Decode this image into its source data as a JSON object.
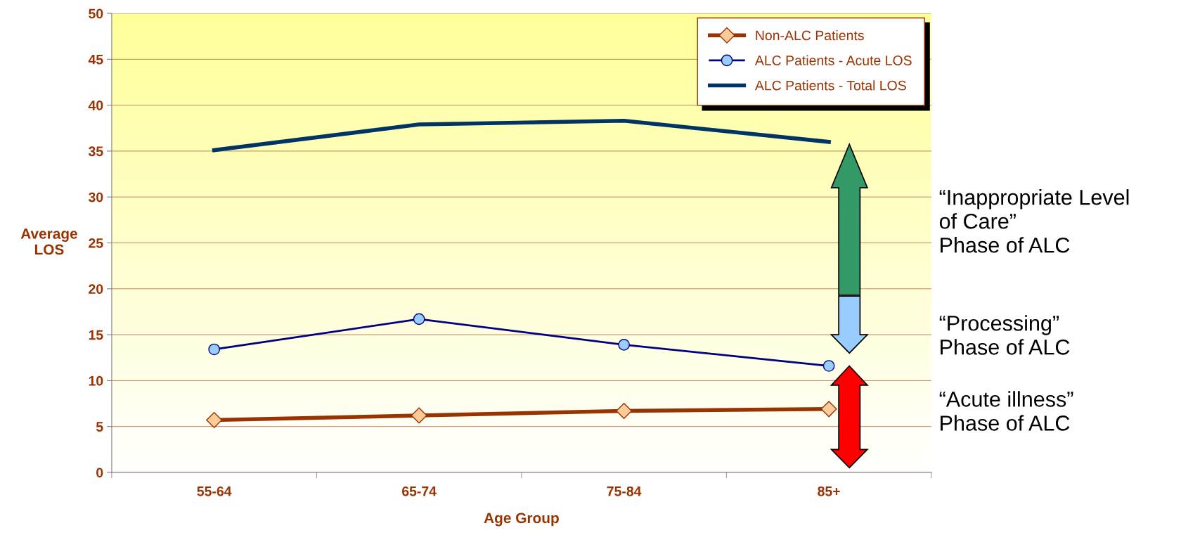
{
  "chart_data": {
    "type": "line",
    "xlabel": "Age Group",
    "ylabel": "Average\nLOS",
    "categories": [
      "55-64",
      "65-74",
      "75-84",
      "85+"
    ],
    "series": [
      {
        "name": "Non-ALC Patients",
        "color": "#993300",
        "marker": "diamond",
        "values": [
          5.7,
          6.2,
          6.7,
          6.9
        ]
      },
      {
        "name": "ALC Patients - Acute LOS",
        "color": "#000080",
        "marker": "circle",
        "values": [
          13.4,
          16.7,
          13.9,
          11.6
        ]
      },
      {
        "name": "ALC Patients - Total LOS",
        "color": "#003366",
        "marker": "none",
        "values": [
          35.1,
          37.9,
          38.3,
          36.0
        ]
      }
    ],
    "ylim": [
      0,
      50
    ],
    "yticks": [
      0,
      5,
      10,
      15,
      20,
      25,
      30,
      35,
      40,
      45,
      50
    ],
    "grid": "y",
    "legend": "top right",
    "line_style": "solid",
    "annotations": [
      "“Inappropriate Level\nof Care”\nPhase of ALC",
      "“Processing”\nPhase of ALC",
      "“Acute illness”\nPhase of ALC"
    ]
  }
}
